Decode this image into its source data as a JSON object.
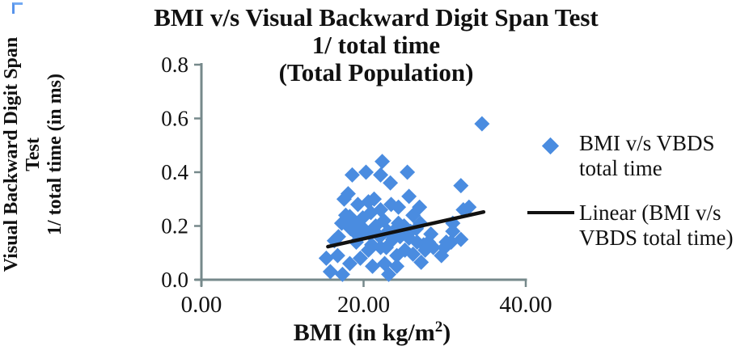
{
  "chart_data": {
    "type": "scatter",
    "title_lines": [
      "BMI v/s Visual Backward Digit Span Test",
      "1/ total time",
      "(Total Population)"
    ],
    "ylabel_lines": [
      "Visual Backward Digit Span",
      "Test",
      "1/ total time (in ms)"
    ],
    "xlabel": {
      "prefix": "BMI (in kg/m",
      "sup": "2",
      "suffix": ")"
    },
    "xlim": [
      0,
      40
    ],
    "ylim": [
      0,
      0.8
    ],
    "x_ticks": [
      {
        "value": 0,
        "label": "0.00"
      },
      {
        "value": 20,
        "label": "20.00"
      },
      {
        "value": 40,
        "label": "40.00"
      }
    ],
    "y_ticks": [
      {
        "value": 0.0,
        "label": "0.0"
      },
      {
        "value": 0.2,
        "label": "0.2"
      },
      {
        "value": 0.4,
        "label": "0.4"
      },
      {
        "value": 0.6,
        "label": "0.6"
      },
      {
        "value": 0.8,
        "label": "0.8"
      }
    ],
    "grid": false,
    "legend_position": "right",
    "series": [
      {
        "name": "BMI v/s VBDS total time",
        "type": "scatter",
        "marker": "diamond",
        "color": "#4a8ce0",
        "points": [
          [
            22.3,
            0.44
          ],
          [
            20.3,
            0.4
          ],
          [
            22.1,
            0.39
          ],
          [
            23.3,
            0.36
          ],
          [
            18.1,
            0.32
          ],
          [
            19.3,
            0.28
          ],
          [
            20.6,
            0.29
          ],
          [
            21.3,
            0.3
          ],
          [
            23.4,
            0.28
          ],
          [
            17.8,
            0.24
          ],
          [
            18.9,
            0.21
          ],
          [
            19.9,
            0.23
          ],
          [
            20.9,
            0.25
          ],
          [
            22.1,
            0.26
          ],
          [
            24.3,
            0.27
          ],
          [
            16.9,
            0.16
          ],
          [
            18.4,
            0.19
          ],
          [
            18.6,
            0.39
          ],
          [
            25.4,
            0.4
          ],
          [
            25.6,
            0.31
          ],
          [
            26.9,
            0.27
          ],
          [
            32.3,
            0.26
          ],
          [
            26.1,
            0.24
          ],
          [
            24.3,
            0.21
          ],
          [
            28.3,
            0.17
          ],
          [
            31.0,
            0.18
          ],
          [
            32.0,
            0.15
          ],
          [
            30.2,
            0.14
          ],
          [
            27.4,
            0.13
          ],
          [
            32.0,
            0.35
          ],
          [
            33.0,
            0.27
          ],
          [
            31.0,
            0.21
          ],
          [
            30.8,
            0.14
          ],
          [
            30.0,
            0.12
          ],
          [
            34.6,
            0.58
          ],
          [
            17.6,
            0.3
          ],
          [
            18.3,
            0.235
          ],
          [
            17.3,
            0.21
          ],
          [
            18.8,
            0.18
          ],
          [
            16.4,
            0.145
          ],
          [
            15.4,
            0.08
          ],
          [
            16.8,
            0.09
          ],
          [
            18.3,
            0.06
          ],
          [
            17.4,
            0.02
          ],
          [
            15.9,
            0.03
          ],
          [
            19.1,
            0.14
          ],
          [
            20.6,
            0.11
          ],
          [
            22.1,
            0.12
          ],
          [
            19.6,
            0.08
          ],
          [
            21.1,
            0.05
          ],
          [
            22.6,
            0.06
          ],
          [
            23.1,
            0.02
          ],
          [
            24.1,
            0.09
          ],
          [
            24.6,
            0.17
          ],
          [
            25.6,
            0.155
          ],
          [
            26.6,
            0.14
          ],
          [
            25.1,
            0.11
          ],
          [
            26.1,
            0.095
          ],
          [
            27.6,
            0.11
          ],
          [
            28.6,
            0.12
          ],
          [
            29.6,
            0.09
          ],
          [
            27.1,
            0.065
          ],
          [
            24.1,
            0.05
          ],
          [
            20.0,
            0.19
          ],
          [
            20.8,
            0.17
          ],
          [
            21.5,
            0.2
          ],
          [
            22.0,
            0.16
          ],
          [
            22.5,
            0.22
          ],
          [
            23.0,
            0.18
          ],
          [
            23.6,
            0.15
          ],
          [
            24.0,
            0.19
          ],
          [
            24.5,
            0.16
          ],
          [
            25.0,
            0.2
          ],
          [
            21.0,
            0.13
          ],
          [
            22.8,
            0.12
          ],
          [
            19.5,
            0.16
          ],
          [
            25.8,
            0.18
          ],
          [
            26.5,
            0.19
          ],
          [
            27.0,
            0.21
          ],
          [
            28.0,
            0.14
          ]
        ]
      },
      {
        "name": "Linear (BMI v/s VBDS total time)",
        "type": "line",
        "color": "#111111",
        "points": [
          [
            15.6,
            0.123
          ],
          [
            34.8,
            0.252
          ]
        ]
      }
    ],
    "legend": {
      "items": [
        {
          "marker": "diamond",
          "color": "#4a8ce0",
          "lines": [
            "BMI v/s VBDS",
            "total time"
          ]
        },
        {
          "marker": "line",
          "color": "#111111",
          "lines": [
            "Linear (BMI v/s",
            "VBDS total time)"
          ]
        }
      ]
    },
    "colors": {
      "axis": "#76898b",
      "text": "#111111",
      "marker_blue": "#4a8ce0"
    }
  }
}
